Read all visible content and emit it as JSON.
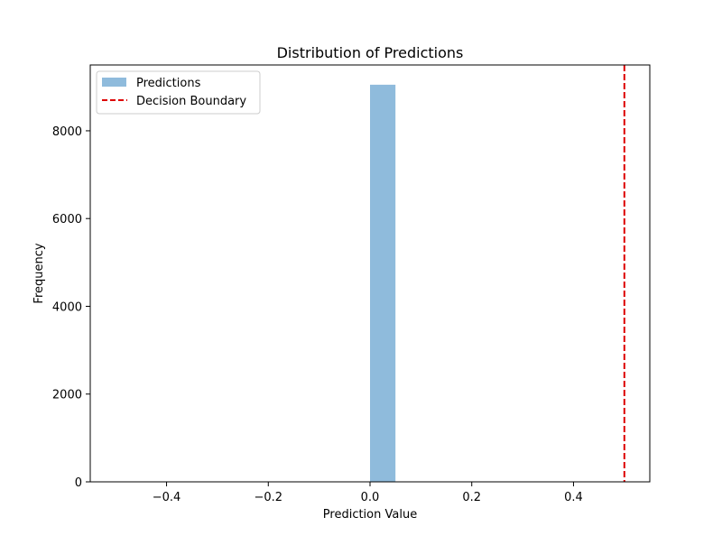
{
  "chart_data": {
    "type": "histogram",
    "title": "Distribution of Predictions",
    "xlabel": "Prediction Value",
    "ylabel": "Frequency",
    "xlim": [
      -0.55,
      0.55
    ],
    "ylim": [
      0,
      9500
    ],
    "xticks": [
      -0.4,
      -0.2,
      0.0,
      0.2,
      0.4
    ],
    "xtick_labels": [
      "−0.4",
      "−0.2",
      "0.0",
      "0.2",
      "0.4"
    ],
    "yticks": [
      0,
      2000,
      4000,
      6000,
      8000
    ],
    "ytick_labels": [
      "0",
      "2000",
      "4000",
      "6000",
      "8000"
    ],
    "grid": false,
    "legend_position": "upper left",
    "series": [
      {
        "name": "Predictions",
        "kind": "bar",
        "color": "#8fbbdc",
        "bins": [
          {
            "x0": 0.0,
            "x1": 0.05,
            "count": 9050
          }
        ]
      },
      {
        "name": "Decision Boundary",
        "kind": "vline",
        "color": "#dd0000",
        "style": "dashed",
        "x": 0.5
      }
    ]
  }
}
